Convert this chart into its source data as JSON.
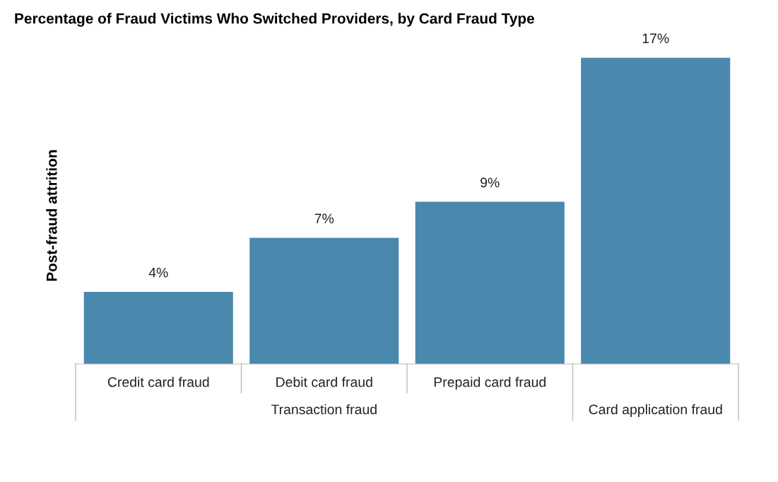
{
  "chart_data": {
    "type": "bar",
    "title": "Percentage of Fraud Victims Who Switched Providers, by Card Fraud Type",
    "ylabel": "Post-fraud attrition",
    "categories": [
      "Credit card fraud",
      "Debit card fraud",
      "Prepaid card fraud",
      null
    ],
    "values": [
      4,
      7,
      9,
      17
    ],
    "value_labels": [
      "4%",
      "7%",
      "9%",
      "17%"
    ],
    "color": "#4a88ad",
    "tick_labels": "x",
    "annotations": [
      "Transaction fraud",
      "Card application fraud"
    ]
  }
}
